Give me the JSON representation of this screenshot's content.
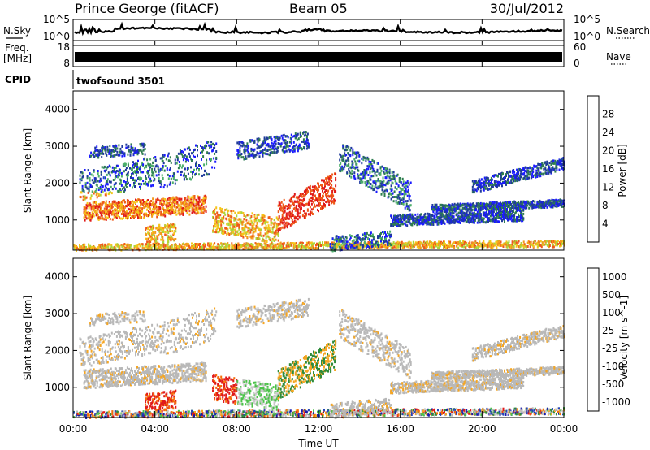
{
  "header": {
    "station": "Prince George (fitACF)",
    "beam": "Beam 05",
    "date": "30/Jul/2012"
  },
  "strips": {
    "nsky_label": "N.Sky",
    "nsky_ticks": [
      "10^5",
      "10^0"
    ],
    "nsearch_label": "N.Search",
    "nsearch_ticks": [
      "10^5",
      "10^0"
    ],
    "freq_label": "Freq.",
    "freq_unit": "[MHz]",
    "freq_ticks": [
      "18",
      "8"
    ],
    "nave_label": "Nave",
    "nave_ticks": [
      "60",
      "0"
    ],
    "cpid_label": "CPID",
    "cpid_value": "twofsound 3501"
  },
  "colors": {
    "power_scale": [
      "#1a1aff",
      "#1f3a9a",
      "#2e7d4f",
      "#4caf6a",
      "#a9d63a",
      "#f5c518",
      "#f39a1c",
      "#ee5a1a",
      "#e01a1a"
    ],
    "velocity_scale": [
      "#e01a1a",
      "#f56d0a",
      "#f5a623",
      "#b8b8b8",
      "#c8c8c8",
      "#4cc24a",
      "#2e8b3a",
      "#2244b8",
      "#1a1aaa"
    ]
  },
  "chart_data": [
    {
      "type": "heatmap",
      "name": "power",
      "ylabel": "Slant Range [km]",
      "y_ticks": [
        "1000",
        "2000",
        "3000",
        "4000"
      ],
      "ylim": [
        180,
        4500
      ],
      "x_ticks": [
        "00:00",
        "04:00",
        "08:00",
        "12:00",
        "16:00",
        "20:00",
        "00:00"
      ],
      "xlim_hours": [
        0,
        24
      ],
      "colorbar_label": "Power [dB]",
      "colorbar_ticks": [
        "4",
        "8",
        "12",
        "16",
        "20",
        "24",
        "28"
      ],
      "colorbar_range": [
        0,
        30
      ]
    },
    {
      "type": "heatmap",
      "name": "velocity",
      "ylabel": "Slant Range [km]",
      "y_ticks": [
        "1000",
        "2000",
        "3000",
        "4000"
      ],
      "ylim": [
        180,
        4500
      ],
      "x_ticks": [
        "00:00",
        "04:00",
        "08:00",
        "12:00",
        "16:00",
        "20:00",
        "00:00"
      ],
      "xlim_hours": [
        0,
        24
      ],
      "xlabel": "Time UT",
      "colorbar_label": "Velocity [m s^-1]",
      "colorbar_ticks": [
        "1000",
        "500",
        "100",
        "25",
        "-25",
        "-100",
        "-500",
        "-1000"
      ]
    }
  ]
}
